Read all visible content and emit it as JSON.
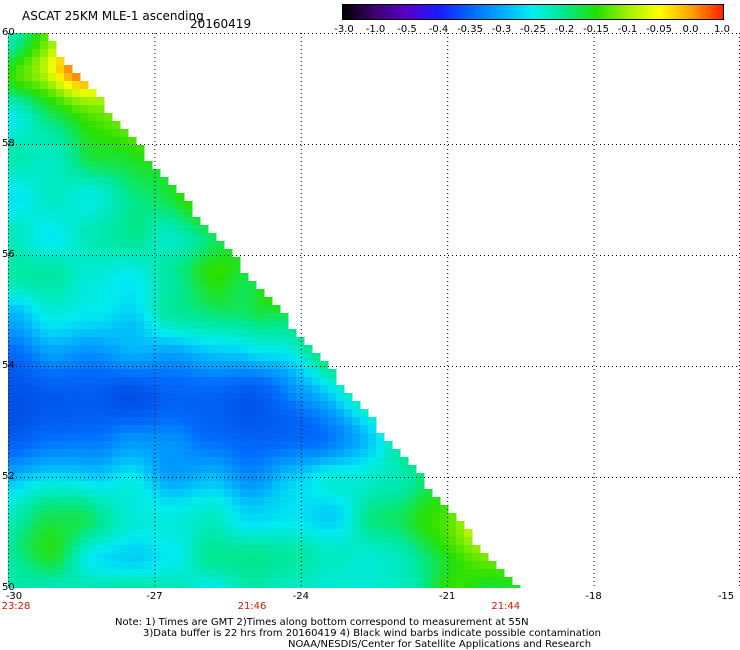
{
  "header": {
    "title": "ASCAT 25KM MLE-1 ascending",
    "date": "20160419"
  },
  "colorbar": {
    "ticks": [
      "-3.0",
      "-1.0",
      "-0.5",
      "-0.4",
      "-0.35",
      "-0.3",
      "-0.25",
      "-0.2",
      "-0.15",
      "-0.1",
      "-0.05",
      "0.0",
      "1.0"
    ],
    "colors": [
      "#000000",
      "#3a0070",
      "#5a00c8",
      "#1a1aff",
      "#0066ff",
      "#00aaff",
      "#00f0f0",
      "#00e890",
      "#22e000",
      "#a0f000",
      "#ffff00",
      "#ffa000",
      "#ff2000"
    ]
  },
  "map": {
    "lat_labels": [
      "60",
      "58",
      "56",
      "54",
      "52",
      "50"
    ],
    "lon_labels": [
      "-30",
      "-27",
      "-24",
      "-21",
      "-18",
      "-15"
    ],
    "lat_range": [
      50,
      60
    ],
    "lon_range": [
      -30,
      -15
    ],
    "time_labels": [
      {
        "lon": -30,
        "text": "23:28"
      },
      {
        "lon": -25,
        "text": "21:46"
      },
      {
        "lon": -19.8,
        "text": "21:44"
      }
    ]
  },
  "notes": [
    "Note: 1) Times are GMT 2)Times along bottom correspond to measurement at 55N",
    "3)Data buffer is 22 hrs from 20160419 4) Black wind barbs indicate possible contamination",
    "NOAA/NESDIS/Center for Satellite Applications and Research"
  ]
}
